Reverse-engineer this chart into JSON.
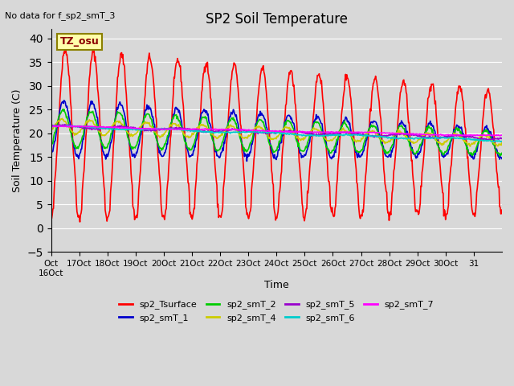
{
  "title": "SP2 Soil Temperature",
  "ylabel": "Soil Temperature (C)",
  "xlabel": "Time",
  "no_data_text": "No data for f_sp2_smT_3",
  "tz_label": "TZ_osu",
  "ylim": [
    -5,
    42
  ],
  "yticks": [
    -5,
    0,
    5,
    10,
    15,
    20,
    25,
    30,
    35,
    40
  ],
  "background_color": "#d8d8d8",
  "xtick_labels": [
    "Oct\n16Oct",
    "17Oct",
    "18Oct",
    "19Oct",
    "20Oct",
    "21Oct",
    "22Oct",
    "23Oct",
    "24Oct",
    "25Oct",
    "26Oct",
    "27Oct",
    "28Oct",
    "29Oct",
    "30Oct",
    "31"
  ],
  "legend_entries": [
    "sp2_Tsurface",
    "sp2_smT_1",
    "sp2_smT_2",
    "sp2_smT_4",
    "sp2_smT_5",
    "sp2_smT_6",
    "sp2_smT_7"
  ],
  "line_colors": {
    "sp2_Tsurface": "#ff0000",
    "sp2_smT_1": "#0000cc",
    "sp2_smT_2": "#00cc00",
    "sp2_smT_4": "#cccc00",
    "sp2_smT_5": "#9900cc",
    "sp2_smT_6": "#00cccc",
    "sp2_smT_7": "#ff00ff"
  }
}
